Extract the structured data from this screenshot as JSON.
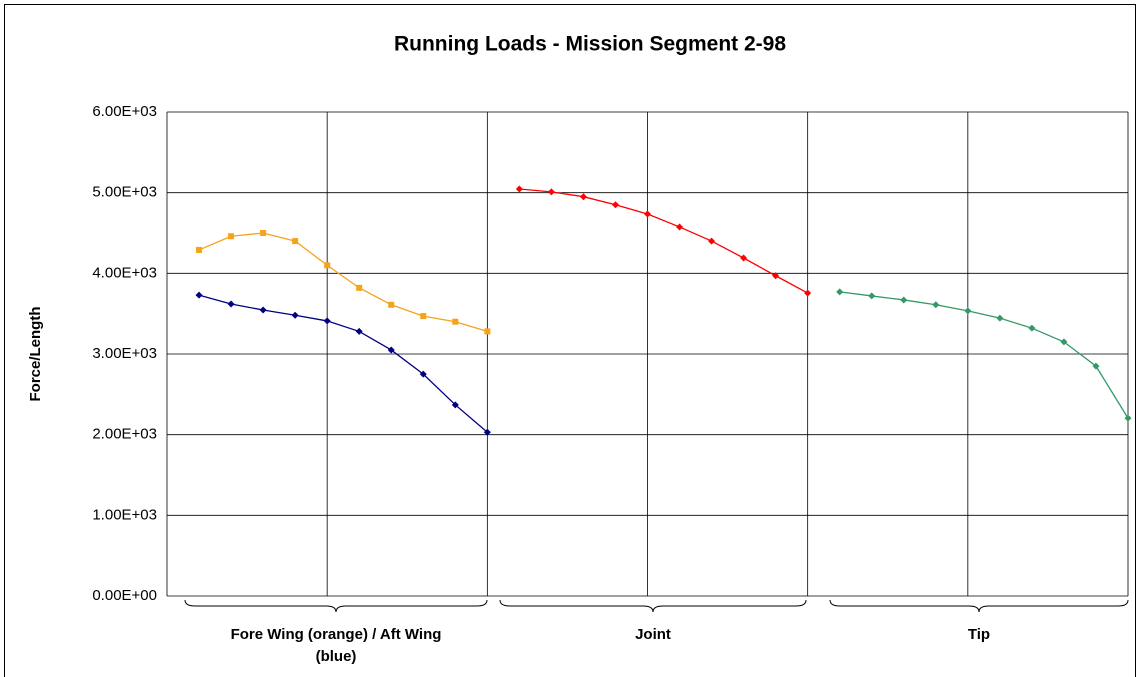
{
  "chart_data": {
    "type": "line",
    "title": "Running Loads - Mission Segment 2-98",
    "y_label": "Force/Length",
    "groups": [
      "Fore Wing (orange) / Aft Wing (blue)",
      "Joint",
      "Tip"
    ],
    "xlim": [
      0,
      6
    ],
    "xticks": [
      0,
      1,
      2,
      3,
      4,
      5,
      6
    ],
    "ylim": [
      0,
      6000
    ],
    "yticks": [
      {
        "value": 0,
        "label": "0.00E+00"
      },
      {
        "value": 1000,
        "label": "1.00E+03"
      },
      {
        "value": 2000,
        "label": "2.00E+03"
      },
      {
        "value": 3000,
        "label": "3.00E+03"
      },
      {
        "value": 4000,
        "label": "4.00E+03"
      },
      {
        "value": 5000,
        "label": "5.00E+03"
      },
      {
        "value": 6000,
        "label": "6.00E+03"
      }
    ],
    "grid": true,
    "series": [
      {
        "color": "#f5a31a",
        "marker": "square",
        "x": [
          0.2,
          0.4,
          0.6,
          0.8,
          1.0,
          1.2,
          1.4,
          1.6,
          1.8,
          2.0
        ],
        "values": [
          4290,
          4460,
          4500,
          4400,
          4100,
          3820,
          3610,
          3470,
          3400,
          3280
        ]
      },
      {
        "color": "#000080",
        "marker": "diamond",
        "x": [
          0.2,
          0.4,
          0.6,
          0.8,
          1.0,
          1.2,
          1.4,
          1.6,
          1.8,
          2.0
        ],
        "values": [
          3730,
          3620,
          3545,
          3480,
          3410,
          3280,
          3050,
          2750,
          2370,
          2030
        ]
      },
      {
        "color": "#ff0000",
        "marker": "diamond",
        "x": [
          2.2,
          2.4,
          2.6,
          2.8,
          3.0,
          3.2,
          3.4,
          3.6,
          3.8,
          4.0
        ],
        "values": [
          5045,
          5010,
          4950,
          4850,
          4735,
          4575,
          4400,
          4190,
          3970,
          3755
        ]
      },
      {
        "color": "#339966",
        "marker": "diamond",
        "x": [
          4.2,
          4.4,
          4.6,
          4.8,
          5.0,
          5.2,
          5.4,
          5.6,
          5.8,
          6.0
        ],
        "values": [
          3770,
          3720,
          3670,
          3610,
          3535,
          3445,
          3320,
          3150,
          2850,
          2205
        ]
      }
    ]
  }
}
